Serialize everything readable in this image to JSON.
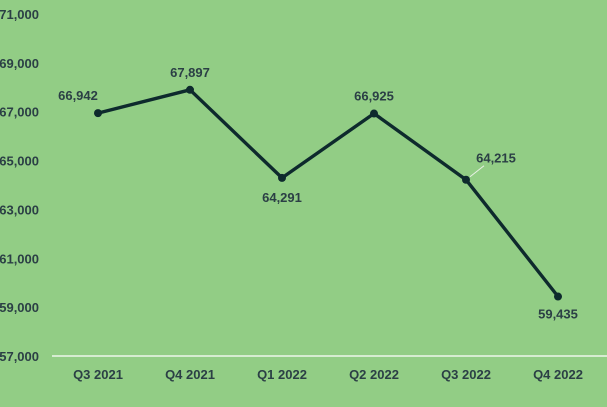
{
  "chart_data": {
    "type": "line",
    "categories": [
      "Q3 2021",
      "Q4 2021",
      "Q1 2022",
      "Q2 2022",
      "Q3 2022",
      "Q4 2022"
    ],
    "series": [
      {
        "values": [
          66942,
          67897,
          64291,
          66925,
          64215,
          59435
        ],
        "labels": [
          "66,942",
          "67,897",
          "64,291",
          "66,925",
          "64,215",
          "59,435"
        ]
      }
    ],
    "y_ticks": [
      "57,000",
      "59,000",
      "61,000",
      "63,000",
      "65,000",
      "67,000",
      "69,000",
      "71,000"
    ],
    "ylim": [
      57000,
      71000
    ],
    "y_tick_step": 2000,
    "grid": false,
    "legend": "none",
    "colors": {
      "background": "#92cd85",
      "line": "#0e2a2d",
      "text": "#2b3f45",
      "axis": "#ffffff",
      "leader": "#e9f1e6"
    }
  }
}
